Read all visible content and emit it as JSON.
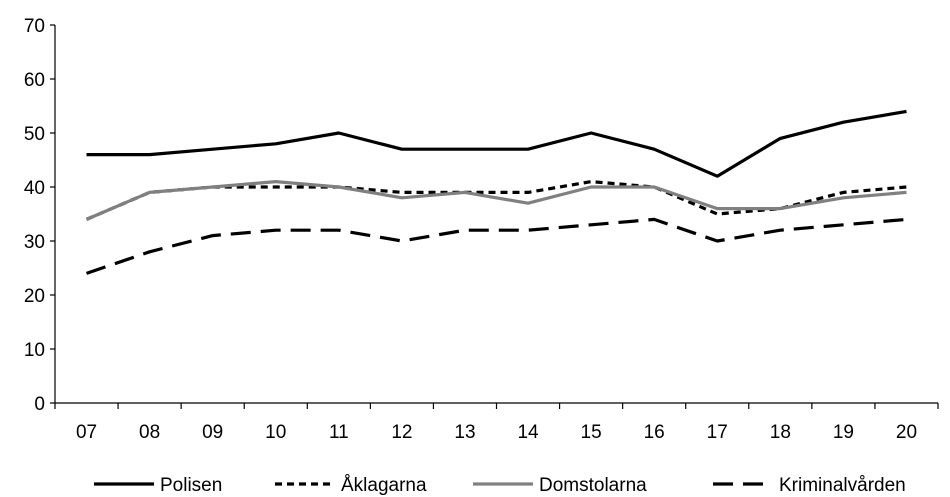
{
  "chart_data": {
    "type": "line",
    "categories": [
      "07",
      "08",
      "09",
      "10",
      "11",
      "12",
      "13",
      "14",
      "15",
      "16",
      "17",
      "18",
      "19",
      "20"
    ],
    "ylim": [
      0,
      70
    ],
    "yticks": [
      0,
      10,
      20,
      30,
      40,
      50,
      60,
      70
    ],
    "grid": false,
    "legend_position": "bottom",
    "series": [
      {
        "name": "Polisen",
        "color": "#000000",
        "dash": "solid",
        "values": [
          46,
          46,
          47,
          48,
          50,
          47,
          47,
          47,
          50,
          47,
          42,
          49,
          52,
          54
        ]
      },
      {
        "name": "Åklagarna",
        "color": "#000000",
        "dash": "short-dash",
        "values": [
          34,
          39,
          40,
          40,
          40,
          39,
          39,
          39,
          41,
          40,
          35,
          36,
          39,
          40
        ]
      },
      {
        "name": "Domstolarna",
        "color": "#808080",
        "dash": "solid",
        "values": [
          34,
          39,
          40,
          41,
          40,
          38,
          39,
          37,
          40,
          40,
          36,
          36,
          38,
          39
        ]
      },
      {
        "name": "Kriminalvården",
        "color": "#000000",
        "dash": "long-dash",
        "values": [
          24,
          28,
          31,
          32,
          32,
          30,
          32,
          32,
          33,
          34,
          30,
          32,
          33,
          34
        ]
      }
    ]
  }
}
